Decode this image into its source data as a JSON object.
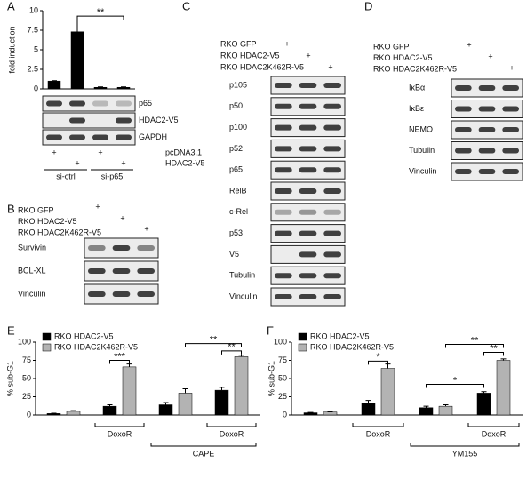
{
  "panel_labels": [
    "A",
    "B",
    "C",
    "D",
    "E",
    "F"
  ],
  "chart_data": [
    {
      "type": "bar",
      "ylabel": "fold induction",
      "categories": [
        null,
        null,
        null,
        null
      ],
      "series": [
        {
          "color": "#000000",
          "values": [
            1,
            7.3,
            0.2,
            0.2
          ],
          "errors": [
            0.05,
            1.5,
            0.05,
            0.05
          ]
        }
      ],
      "ylim": [
        0,
        10
      ],
      "yticks": [
        0,
        2.5,
        5,
        7.5,
        10
      ],
      "annotations": [
        "**"
      ]
    },
    {
      "type": "bar",
      "ylabel": "% sub-G1",
      "categories": [
        null,
        null,
        null,
        null
      ],
      "series": [
        {
          "name": "RKO HDAC2-V5",
          "color": "#000000",
          "values": [
            2,
            12,
            14,
            34
          ],
          "errors": [
            0.5,
            2,
            3,
            4
          ]
        },
        {
          "name": "RKO HDAC2K462R-V5",
          "color": "#b3b3b3",
          "values": [
            5,
            66,
            30,
            80
          ],
          "errors": [
            1,
            4,
            6,
            2
          ]
        }
      ],
      "ylim": [
        0,
        100
      ],
      "yticks": [
        0,
        25,
        50,
        75,
        100
      ],
      "annotations": [
        "***",
        "**",
        "**"
      ],
      "group_labels": [
        "DoxoR",
        "DoxoR",
        "CAPE"
      ]
    },
    {
      "type": "bar",
      "ylabel": "% sub-G1",
      "categories": [
        null,
        null,
        null,
        null
      ],
      "series": [
        {
          "name": "RKO HDAC2-V5",
          "color": "#000000",
          "values": [
            3,
            16,
            10,
            30
          ],
          "errors": [
            0.5,
            4,
            2,
            2
          ]
        },
        {
          "name": "RKO HDAC2K462R-V5",
          "color": "#b3b3b3",
          "values": [
            4,
            64,
            12,
            75
          ],
          "errors": [
            0.5,
            6,
            2,
            2
          ]
        }
      ],
      "ylim": [
        0,
        100
      ],
      "yticks": [
        0,
        25,
        50,
        75,
        100
      ],
      "annotations": [
        "*",
        "*",
        "**",
        "**"
      ],
      "group_labels": [
        "DoxoR",
        "DoxoR",
        "YM155"
      ]
    }
  ],
  "blots": [
    {
      "rows": [
        "p65",
        "HDAC2-V5",
        "GAPDH"
      ],
      "treatments": [
        {
          "label": "pcDNA3.1",
          "marks": [
            "+",
            "+"
          ]
        },
        {
          "label": "HDAC2-V5",
          "marks": [
            "+",
            "+"
          ]
        }
      ],
      "groups": [
        "si-ctrl",
        "si-p65"
      ]
    },
    {
      "conditions": [
        "RKO GFP",
        "RKO HDAC2-V5",
        "RKO HDAC2K462R-V5"
      ],
      "marks": [
        "+",
        "+",
        "+"
      ],
      "rows": [
        "Survivin",
        "BCL-XL",
        "Vinculin"
      ]
    },
    {
      "conditions": [
        "RKO GFP",
        "RKO HDAC2-V5",
        "RKO HDAC2K462R-V5"
      ],
      "marks": [
        "+",
        "+",
        "+"
      ],
      "rows": [
        "p105",
        "p50",
        "p100",
        "p52",
        "p65",
        "RelB",
        "c-Rel",
        "p53",
        "V5",
        "Tubulin",
        "Vinculin"
      ]
    },
    {
      "conditions": [
        "RKO GFP",
        "RKO HDAC2-V5",
        "RKO HDAC2K462R-V5"
      ],
      "marks": [
        "+",
        "+",
        "+"
      ],
      "rows": [
        "IκBα",
        "IκBε",
        "NEMO",
        "Tubulin",
        "Vinculin"
      ]
    }
  ]
}
